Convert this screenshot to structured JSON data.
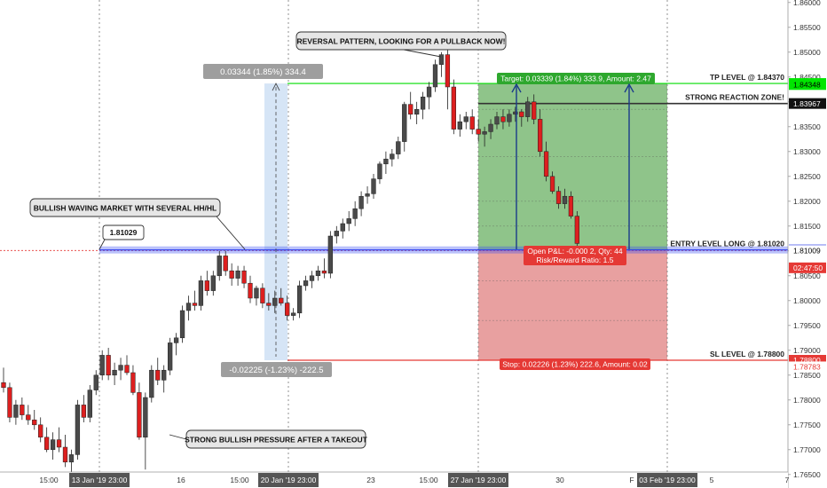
{
  "chart_data": {
    "type": "candlestick",
    "symbol_note": "",
    "y_axis": {
      "ylim": [
        1.7655,
        1.8605
      ],
      "ticks": [
        "1.86000",
        "1.85500",
        "1.85000",
        "1.84500",
        "1.84000",
        "1.83500",
        "1.83000",
        "1.82500",
        "1.82000",
        "1.81500",
        "1.81000",
        "1.80500",
        "1.80000",
        "1.79500",
        "1.79000",
        "1.78500",
        "1.78000",
        "1.77500",
        "1.77000",
        "1.76500"
      ],
      "tick_values": [
        1.86,
        1.855,
        1.85,
        1.845,
        1.84,
        1.835,
        1.83,
        1.825,
        1.82,
        1.815,
        1.81,
        1.805,
        1.8,
        1.795,
        1.79,
        1.785,
        1.78,
        1.775,
        1.77,
        1.765
      ],
      "price_tags": [
        {
          "text": "1.84370",
          "value": 1.8437,
          "bg": "#00e600",
          "fg": "#000000"
        },
        {
          "text": "1.84348",
          "value": 1.84348,
          "bg": "#00e600",
          "fg": "#000000"
        },
        {
          "text": "1.83967",
          "value": 1.83967,
          "bg": "#111111",
          "fg": "#ffffff"
        },
        {
          "text": "1.81020",
          "value": 1.8102,
          "bg": "#1c2ee6",
          "fg": "#ffffff"
        },
        {
          "text": "1.81009",
          "value": 1.81009,
          "bg": "#ffffff",
          "fg": "#000000"
        },
        {
          "text": "02:47:50",
          "value": 1.8066,
          "bg": "#e53935",
          "fg": "#ffffff"
        },
        {
          "text": "1.78800",
          "value": 1.788,
          "bg": "#e53935",
          "fg": "#ffffff"
        },
        {
          "text": "1.78783",
          "value": 1.78667,
          "bg": "#ffffff",
          "fg": "#e53935"
        }
      ]
    },
    "x_axis": {
      "labels": [
        {
          "text": "15:00",
          "x": 55,
          "hl": false
        },
        {
          "text": "13 Jan '19   23:00",
          "x": 112,
          "hl": true
        },
        {
          "text": "16",
          "x": 204,
          "hl": false
        },
        {
          "text": "15:00",
          "x": 270,
          "hl": false
        },
        {
          "text": "20 Jan '19   23:00",
          "x": 325,
          "hl": true
        },
        {
          "text": "23",
          "x": 418,
          "hl": false
        },
        {
          "text": "15:00",
          "x": 483,
          "hl": false
        },
        {
          "text": "27 Jan '19   23:00",
          "x": 539,
          "hl": true
        },
        {
          "text": "30",
          "x": 631,
          "hl": false
        },
        {
          "text": "F",
          "x": 712,
          "hl": false
        },
        {
          "text": "03 Feb '19   23:00",
          "x": 752,
          "hl": true
        },
        {
          "text": "5",
          "x": 802,
          "hl": false
        },
        {
          "text": "7",
          "x": 887,
          "hl": false
        }
      ]
    },
    "candles": [
      [
        1.7835,
        1.7865,
        1.7815,
        1.7825
      ],
      [
        1.7825,
        1.7835,
        1.7755,
        1.7765
      ],
      [
        1.7765,
        1.78,
        1.775,
        1.779
      ],
      [
        1.779,
        1.7805,
        1.776,
        1.777
      ],
      [
        1.777,
        1.779,
        1.775,
        1.776
      ],
      [
        1.776,
        1.778,
        1.774,
        1.775
      ],
      [
        1.775,
        1.7765,
        1.7715,
        1.7725
      ],
      [
        1.7725,
        1.7745,
        1.7695,
        1.77
      ],
      [
        1.77,
        1.7735,
        1.768,
        1.772
      ],
      [
        1.772,
        1.7745,
        1.7695,
        1.7705
      ],
      [
        1.7705,
        1.773,
        1.7665,
        1.7675
      ],
      [
        1.7675,
        1.77,
        1.7655,
        1.769
      ],
      [
        1.769,
        1.78,
        1.768,
        1.779
      ],
      [
        1.779,
        1.781,
        1.7755,
        1.7765
      ],
      [
        1.7765,
        1.783,
        1.7755,
        1.782
      ],
      [
        1.782,
        1.786,
        1.781,
        1.785
      ],
      [
        1.785,
        1.79,
        1.784,
        1.789
      ],
      [
        1.789,
        1.7905,
        1.784,
        1.785
      ],
      [
        1.785,
        1.7875,
        1.783,
        1.786
      ],
      [
        1.786,
        1.7885,
        1.784,
        1.787
      ],
      [
        1.787,
        1.789,
        1.785,
        1.7855
      ],
      [
        1.7855,
        1.787,
        1.781,
        1.7815
      ],
      [
        1.7815,
        1.7835,
        1.772,
        1.7725
      ],
      [
        1.7725,
        1.7815,
        1.766,
        1.7805
      ],
      [
        1.7805,
        1.787,
        1.7795,
        1.786
      ],
      [
        1.786,
        1.7885,
        1.783,
        1.784
      ],
      [
        1.784,
        1.787,
        1.7815,
        1.786
      ],
      [
        1.786,
        1.7925,
        1.785,
        1.7915
      ],
      [
        1.7915,
        1.7935,
        1.789,
        1.7925
      ],
      [
        1.7925,
        1.799,
        1.7915,
        1.798
      ],
      [
        1.798,
        1.801,
        1.796,
        1.7995
      ],
      [
        1.7995,
        1.802,
        1.798,
        1.799
      ],
      [
        1.799,
        1.805,
        1.798,
        1.804
      ],
      [
        1.804,
        1.806,
        1.801,
        1.802
      ],
      [
        1.802,
        1.806,
        1.801,
        1.805
      ],
      [
        1.805,
        1.81,
        1.804,
        1.809
      ],
      [
        1.809,
        1.81,
        1.805,
        1.806
      ],
      [
        1.806,
        1.8075,
        1.803,
        1.8045
      ],
      [
        1.8045,
        1.807,
        1.803,
        1.806
      ],
      [
        1.806,
        1.807,
        1.8025,
        1.8035
      ],
      [
        1.8035,
        1.805,
        1.7995,
        1.8005
      ],
      [
        1.8005,
        1.803,
        1.799,
        1.8025
      ],
      [
        1.8025,
        1.8035,
        1.7985,
        1.7995
      ],
      [
        1.7995,
        1.8015,
        1.798,
        1.799
      ],
      [
        1.799,
        1.802,
        1.7975,
        1.8005
      ],
      [
        1.8005,
        1.8025,
        1.799,
        1.7995
      ],
      [
        1.7995,
        1.801,
        1.796,
        1.797
      ],
      [
        1.797,
        1.7985,
        1.796,
        1.7975
      ],
      [
        1.7975,
        1.804,
        1.7965,
        1.803
      ],
      [
        1.803,
        1.805,
        1.802,
        1.804
      ],
      [
        1.804,
        1.806,
        1.8025,
        1.805
      ],
      [
        1.805,
        1.807,
        1.804,
        1.806
      ],
      [
        1.806,
        1.8085,
        1.8045,
        1.8055
      ],
      [
        1.8055,
        1.814,
        1.8045,
        1.813
      ],
      [
        1.813,
        1.815,
        1.8115,
        1.814
      ],
      [
        1.814,
        1.8165,
        1.8125,
        1.8155
      ],
      [
        1.8155,
        1.818,
        1.814,
        1.8165
      ],
      [
        1.8165,
        1.82,
        1.815,
        1.8185
      ],
      [
        1.8185,
        1.822,
        1.817,
        1.821
      ],
      [
        1.821,
        1.823,
        1.8195,
        1.8215
      ],
      [
        1.8215,
        1.8255,
        1.8205,
        1.8245
      ],
      [
        1.8245,
        1.828,
        1.8235,
        1.8275
      ],
      [
        1.8275,
        1.83,
        1.8255,
        1.8285
      ],
      [
        1.8285,
        1.8305,
        1.827,
        1.8295
      ],
      [
        1.8295,
        1.833,
        1.8285,
        1.832
      ],
      [
        1.832,
        1.84,
        1.83,
        1.8395
      ],
      [
        1.8395,
        1.842,
        1.8365,
        1.8375
      ],
      [
        1.8375,
        1.84,
        1.8355,
        1.8385
      ],
      [
        1.8385,
        1.842,
        1.8365,
        1.841
      ],
      [
        1.841,
        1.844,
        1.8385,
        1.843
      ],
      [
        1.843,
        1.8485,
        1.842,
        1.8475
      ],
      [
        1.8475,
        1.85,
        1.845,
        1.8495
      ],
      [
        1.8495,
        1.851,
        1.8385,
        1.843
      ],
      [
        1.843,
        1.8445,
        1.8335,
        1.8345
      ],
      [
        1.8345,
        1.8375,
        1.833,
        1.836
      ],
      [
        1.836,
        1.838,
        1.8345,
        1.837
      ],
      [
        1.837,
        1.8385,
        1.8335,
        1.8345
      ],
      [
        1.8345,
        1.8365,
        1.832,
        1.8335
      ],
      [
        1.8335,
        1.835,
        1.831,
        1.834
      ],
      [
        1.834,
        1.8365,
        1.8325,
        1.8355
      ],
      [
        1.8355,
        1.838,
        1.8345,
        1.837
      ],
      [
        1.837,
        1.8385,
        1.8345,
        1.836
      ],
      [
        1.836,
        1.8385,
        1.835,
        1.8375
      ],
      [
        1.8375,
        1.839,
        1.836,
        1.838
      ],
      [
        1.838,
        1.8385,
        1.835,
        1.837
      ],
      [
        1.837,
        1.841,
        1.836,
        1.84
      ],
      [
        1.84,
        1.8415,
        1.8355,
        1.8365
      ],
      [
        1.8365,
        1.8385,
        1.829,
        1.83
      ],
      [
        1.83,
        1.832,
        1.824,
        1.825
      ],
      [
        1.825,
        1.826,
        1.8215,
        1.822
      ],
      [
        1.822,
        1.823,
        1.8185,
        1.8195
      ],
      [
        1.8195,
        1.8225,
        1.8185,
        1.821
      ],
      [
        1.821,
        1.822,
        1.8165,
        1.817
      ],
      [
        1.817,
        1.818,
        1.8109,
        1.8115
      ]
    ],
    "lines": [
      {
        "name": "tp",
        "label": "TP LEVEL @ 1.84370",
        "value": 1.8437,
        "color": "#00dd00"
      },
      {
        "name": "reaction",
        "label": "STRONG REACTION ZONE!",
        "value": 1.83967,
        "color": "#333333"
      },
      {
        "name": "entry",
        "label": "ENTRY LEVEL LONG @ 1.81020",
        "value": 1.8102,
        "color": "#2233ee"
      },
      {
        "name": "sl",
        "label": "SL LEVEL @ 1.78800",
        "value": 1.788,
        "color": "#e53935"
      }
    ],
    "measure": {
      "top_label": "0.03344 (1.85%) 334.4",
      "bottom_label": "-0.02225 (-1.23%) -222.5",
      "top_value": 1.8437,
      "bottom_value": 1.788
    },
    "position": {
      "target_label": "Target: 0.03339 (1.84%) 333.9, Amount: 2.47",
      "stop_label": "Stop: 0.02226 (1.23%) 222.6, Amount: 0.02",
      "pnl_label": "Open P&L: -0.000   2, Qty: 44",
      "rr_label": "Risk/Reward Ratio: 1.5"
    },
    "annotations": {
      "reversal": "REVERSAL PATTERN, LOOKING FOR A PULLBACK NOW!",
      "bullish_waving": "BULLISH WAVING MARKET WITH SEVERAL HH/HL",
      "price_callout": "1.81029",
      "strong_pressure": "STRONG BULLISH PRESSURE AFTER A TAKEOUT"
    },
    "colors": {
      "bull": "#4a4a4a",
      "bear": "#dd1f1f",
      "profit_zone": "#8fc48a",
      "loss_zone": "#e8a0a0",
      "measure_zone": "#cfe0f4"
    }
  }
}
